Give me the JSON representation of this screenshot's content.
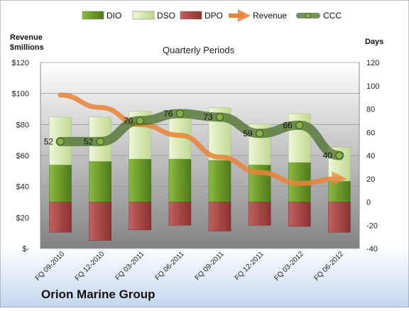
{
  "chart_data": {
    "type": "bar",
    "title": "Quarterly Periods",
    "company": "Orion Marine Group",
    "left_axis_label_line1": "Revenue",
    "left_axis_label_line2": "$millions",
    "right_axis_label": "Days",
    "categories": [
      "FQ 09-2010",
      "FQ 12-2010",
      "FQ 03-2011",
      "FQ 06-2011",
      "FQ 09-2011",
      "FQ 12-2011",
      "FQ 03-2012",
      "FQ 06-2012"
    ],
    "left_axis": {
      "min": 0,
      "max": 120,
      "step": 20,
      "tick_labels": [
        "$-",
        "$20",
        "$40",
        "$60",
        "$80",
        "$100",
        "$120"
      ]
    },
    "right_axis": {
      "min": -40,
      "max": 120,
      "step": 20,
      "tick_labels": [
        "-40",
        "-20",
        "0",
        "20",
        "40",
        "60",
        "80",
        "100",
        "120"
      ]
    },
    "legend_position": "top",
    "legend": [
      {
        "key": "dio",
        "label": "DIO"
      },
      {
        "key": "dso",
        "label": "DSO"
      },
      {
        "key": "dpo",
        "label": "DPO"
      },
      {
        "key": "revenue",
        "label": "Revenue"
      },
      {
        "key": "ccc",
        "label": "CCC"
      }
    ],
    "series": {
      "dio": {
        "name": "DIO",
        "axis": "right",
        "values": [
          32,
          35,
          37,
          37,
          36,
          32,
          34,
          18
        ],
        "color": "#6a9a2a"
      },
      "dso": {
        "name": "DSO",
        "axis": "right",
        "values": [
          41,
          38,
          41,
          42,
          45,
          35,
          42,
          29
        ],
        "color": "#d8e8b0"
      },
      "dpo": {
        "name": "DPO",
        "axis": "right",
        "values": [
          -26,
          -33,
          -24,
          -20,
          -25,
          -20,
          -21,
          -26
        ],
        "color": "#a84848"
      },
      "revenue": {
        "name": "Revenue",
        "axis": "left",
        "values": [
          99,
          91,
          80,
          73,
          59,
          49,
          42,
          45
        ],
        "color": "#e8843a"
      },
      "ccc": {
        "name": "CCC",
        "axis": "right",
        "values": [
          52,
          52,
          70,
          76,
          73,
          59,
          66,
          40
        ],
        "color": "#4a6e2a"
      }
    },
    "data_labels": [
      "52",
      "52",
      "70",
      "76",
      "73",
      "59",
      "66",
      "40"
    ]
  }
}
